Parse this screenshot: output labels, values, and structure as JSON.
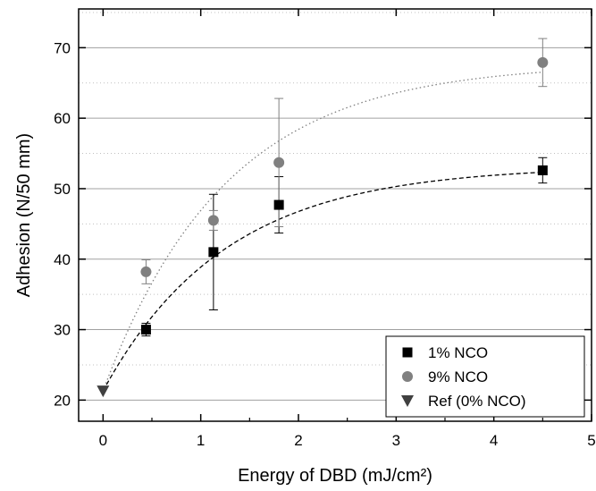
{
  "chart_data": {
    "type": "scatter",
    "xlabel": "Energy of DBD (mJ/cm²)",
    "ylabel": "Adhesion (N/50 mm)",
    "xlim": [
      -0.25,
      5
    ],
    "ylim": [
      17,
      75.5
    ],
    "xticks": [
      0,
      1,
      2,
      3,
      4,
      5
    ],
    "yticks": [
      20,
      30,
      40,
      50,
      60,
      70
    ],
    "grid": "horizontal major solid, minor dotted",
    "legend_position": "bottom-right",
    "series": [
      {
        "name": "1% NCO",
        "marker": "square",
        "color": "#000000",
        "points": [
          {
            "x": 0.44,
            "y": 30.0,
            "err": 0.9
          },
          {
            "x": 1.13,
            "y": 41.0,
            "err": 8.2
          },
          {
            "x": 1.8,
            "y": 47.7,
            "err": 4.0
          },
          {
            "x": 4.5,
            "y": 52.6,
            "err": 1.8
          }
        ]
      },
      {
        "name": "9% NCO",
        "marker": "circle",
        "color": "#808080",
        "points": [
          {
            "x": 0.44,
            "y": 38.2,
            "err": 1.7
          },
          {
            "x": 1.13,
            "y": 45.5,
            "err": 1.4
          },
          {
            "x": 1.8,
            "y": 53.7,
            "err": 9.1
          },
          {
            "x": 4.5,
            "y": 67.9,
            "err": 3.4
          }
        ]
      },
      {
        "name": "Ref (0% NCO)",
        "marker": "triangle-down",
        "color": "#404040",
        "points": [
          {
            "x": 0,
            "y": 21.3,
            "err": 0
          }
        ]
      }
    ],
    "fits": [
      {
        "series": "1% NCO",
        "style": "dashed",
        "color": "#000000",
        "y0": 21.3,
        "plateau": 53.2,
        "rate": 0.8
      },
      {
        "series": "9% NCO",
        "style": "dotted",
        "color": "#808080",
        "y0": 21.3,
        "plateau": 67.8,
        "rate": 0.8
      }
    ]
  }
}
